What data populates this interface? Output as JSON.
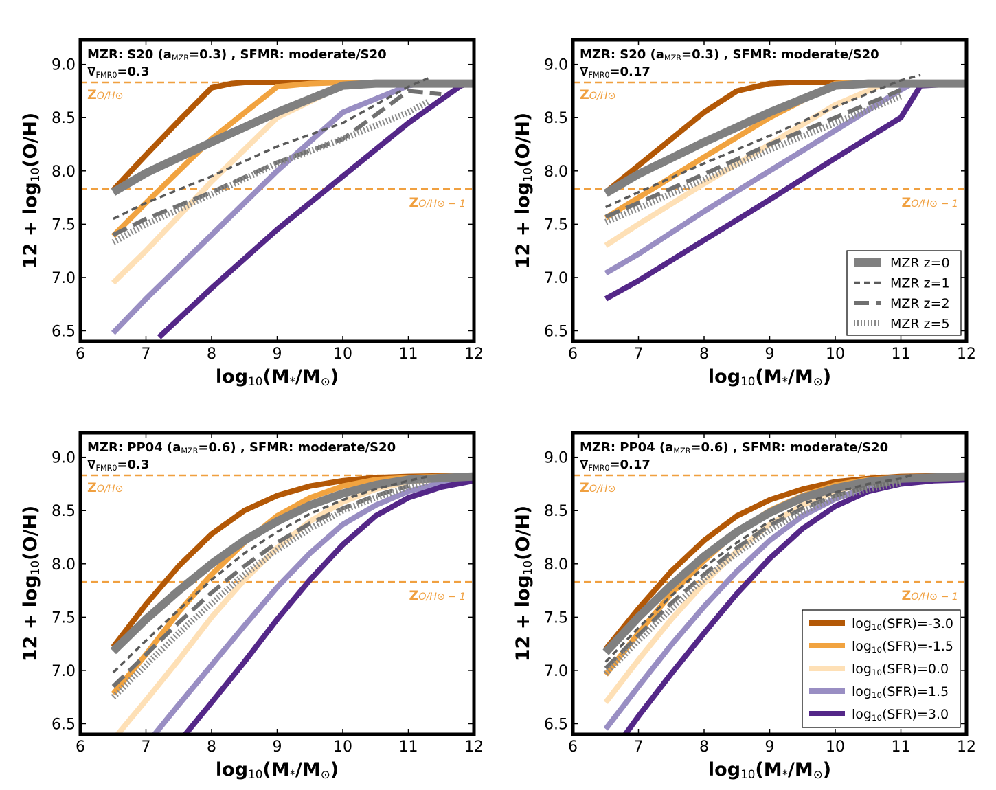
{
  "figure": {
    "x_axis_label": "log10(M*/M⊙)",
    "y_axis_label": "12 + log10(O/H)",
    "ref_line_label_top": "ZO/H⊙",
    "ref_line_label_bottom": "ZO/H⊙ −1",
    "ref_values": [
      8.83,
      7.83
    ],
    "ref_color": "#f0a040"
  },
  "legend_mzr": {
    "entries": [
      "MZR z=0",
      "MZR z=1",
      "MZR z=2",
      "MZR z=5"
    ]
  },
  "legend_sfr": {
    "entries": [
      "log10(SFR)=-3.0",
      "log10(SFR)=-1.5",
      "log10(SFR)=0.0",
      "log10(SFR)=1.5",
      "log10(SFR)=3.0"
    ],
    "colors": [
      "#b35806",
      "#f1a340",
      "#fee0b6",
      "#998ec3",
      "#542788"
    ]
  },
  "chart_data": [
    {
      "type": "line",
      "title_line1": "MZR: S20 (aMZR=0.3) , SFMR: moderate/S20",
      "title_line2": "∇FMR0=0.3",
      "xlabel": "log10(M*/M⊙)",
      "ylabel": "12 + log10(O/H)",
      "xlim": [
        6,
        12
      ],
      "ylim": [
        6.4,
        9.23
      ],
      "xticks": [
        6,
        7,
        8,
        9,
        10,
        11,
        12
      ],
      "yticks": [
        6.5,
        7.0,
        7.5,
        8.0,
        8.5,
        9.0
      ],
      "series": [
        {
          "name": "log10(SFR)=-3.0",
          "x": [
            6.5,
            7,
            7.5,
            8,
            8.3,
            8.5,
            8.7,
            12
          ],
          "y": [
            7.82,
            8.15,
            8.47,
            8.78,
            8.82,
            8.83,
            8.83,
            8.83
          ]
        },
        {
          "name": "log10(SFR)=-1.5",
          "x": [
            6.5,
            7,
            8,
            9,
            9.5,
            10,
            12
          ],
          "y": [
            7.39,
            7.7,
            8.3,
            8.79,
            8.82,
            8.83,
            8.83
          ]
        },
        {
          "name": "log10(SFR)=0.0",
          "x": [
            6.5,
            7,
            8,
            9,
            10,
            10.5,
            12
          ],
          "y": [
            6.95,
            7.25,
            7.9,
            8.5,
            8.8,
            8.83,
            8.83
          ]
        },
        {
          "name": "log10(SFR)=1.5",
          "x": [
            6.5,
            7,
            8,
            9,
            10,
            11,
            11.3,
            12
          ],
          "y": [
            6.48,
            6.8,
            7.4,
            8.0,
            8.55,
            8.8,
            8.83,
            8.83
          ]
        },
        {
          "name": "log10(SFR)=3.0",
          "x": [
            7.2,
            8,
            9,
            10,
            11,
            11.8,
            12
          ],
          "y": [
            6.44,
            6.9,
            7.45,
            7.95,
            8.45,
            8.8,
            8.83
          ]
        },
        {
          "name": "MZR z=0",
          "x": [
            6.5,
            7,
            8,
            9,
            10,
            10.5,
            12
          ],
          "y": [
            7.8,
            7.98,
            8.27,
            8.55,
            8.8,
            8.82,
            8.82
          ]
        },
        {
          "name": "MZR z=1",
          "x": [
            6.5,
            7,
            8,
            9,
            10,
            11,
            11.3
          ],
          "y": [
            7.55,
            7.7,
            7.95,
            8.23,
            8.45,
            8.79,
            8.87
          ]
        },
        {
          "name": "MZR z=2",
          "x": [
            6.5,
            7,
            8,
            9,
            10,
            11,
            11.5
          ],
          "y": [
            7.4,
            7.55,
            7.8,
            8.08,
            8.3,
            8.75,
            8.72
          ]
        },
        {
          "name": "MZR z=5",
          "x": [
            6.5,
            7,
            8,
            9,
            10,
            11,
            11.3
          ],
          "y": [
            7.33,
            7.5,
            7.78,
            8.07,
            8.3,
            8.55,
            8.65
          ]
        }
      ]
    },
    {
      "type": "line",
      "title_line1": "MZR: S20 (aMZR=0.3) , SFMR: moderate/S20",
      "title_line2": "∇FMR0=0.17",
      "xlabel": "log10(M*/M⊙)",
      "ylabel": "12 + log10(O/H)",
      "xlim": [
        6,
        12
      ],
      "ylim": [
        6.4,
        9.23
      ],
      "xticks": [
        6,
        7,
        8,
        9,
        10,
        11,
        12
      ],
      "yticks": [
        6.5,
        7.0,
        7.5,
        8.0,
        8.5,
        9.0
      ],
      "series": [
        {
          "name": "log10(SFR)=-3.0",
          "x": [
            6.5,
            7,
            8,
            8.5,
            9,
            9.3,
            12
          ],
          "y": [
            7.8,
            8.05,
            8.55,
            8.75,
            8.82,
            8.83,
            8.83
          ]
        },
        {
          "name": "log10(SFR)=-1.5",
          "x": [
            6.5,
            7,
            8,
            9,
            10,
            10.3,
            12
          ],
          "y": [
            7.56,
            7.75,
            8.13,
            8.5,
            8.82,
            8.83,
            8.83
          ]
        },
        {
          "name": "log10(SFR)=0.0",
          "x": [
            6.5,
            7,
            8,
            9,
            10,
            10.8,
            12
          ],
          "y": [
            7.3,
            7.5,
            7.88,
            8.25,
            8.62,
            8.83,
            8.83
          ]
        },
        {
          "name": "log10(SFR)=1.5",
          "x": [
            6.5,
            7,
            8,
            9,
            10,
            11,
            11.2,
            12
          ],
          "y": [
            7.04,
            7.22,
            7.62,
            8.0,
            8.38,
            8.76,
            8.83,
            8.83
          ]
        },
        {
          "name": "log10(SFR)=3.0",
          "x": [
            6.5,
            7,
            8,
            9,
            10,
            11,
            11.3,
            12
          ],
          "y": [
            6.8,
            6.97,
            7.35,
            7.73,
            8.12,
            8.5,
            8.8,
            8.82
          ]
        },
        {
          "name": "MZR z=0",
          "x": [
            6.5,
            7,
            8,
            9,
            10,
            10.5,
            12
          ],
          "y": [
            7.79,
            7.97,
            8.27,
            8.55,
            8.8,
            8.82,
            8.82
          ]
        },
        {
          "name": "MZR z=1",
          "x": [
            6.5,
            7,
            8,
            9,
            10,
            11,
            11.3
          ],
          "y": [
            7.66,
            7.8,
            8.07,
            8.33,
            8.6,
            8.85,
            8.9
          ]
        },
        {
          "name": "MZR z=2",
          "x": [
            6.5,
            7,
            8,
            9,
            10,
            11
          ],
          "y": [
            7.57,
            7.7,
            7.97,
            8.25,
            8.5,
            8.76
          ]
        },
        {
          "name": "MZR z=5",
          "x": [
            6.5,
            7,
            8,
            9,
            10,
            11
          ],
          "y": [
            7.52,
            7.65,
            7.92,
            8.2,
            8.45,
            8.7
          ]
        }
      ]
    },
    {
      "type": "line",
      "title_line1": "MZR: PP04 (aMZR=0.6) , SFMR: moderate/S20",
      "title_line2": "∇FMR0=0.3",
      "xlabel": "log10(M*/M⊙)",
      "ylabel": "12 + log10(O/H)",
      "xlim": [
        6,
        12
      ],
      "ylim": [
        6.4,
        9.23
      ],
      "xticks": [
        6,
        7,
        8,
        9,
        10,
        11,
        12
      ],
      "yticks": [
        6.5,
        7.0,
        7.5,
        8.0,
        8.5,
        9.0
      ],
      "series": [
        {
          "name": "log10(SFR)=-3.0",
          "x": [
            6.5,
            7,
            7.5,
            8,
            8.5,
            9,
            9.5,
            10,
            10.5,
            11,
            12
          ],
          "y": [
            7.22,
            7.62,
            7.98,
            8.28,
            8.5,
            8.64,
            8.73,
            8.78,
            8.81,
            8.82,
            8.83
          ]
        },
        {
          "name": "log10(SFR)=-1.5",
          "x": [
            6.5,
            7,
            7.5,
            8,
            8.5,
            9,
            9.5,
            10,
            10.5,
            11,
            12
          ],
          "y": [
            6.78,
            7.15,
            7.55,
            7.9,
            8.2,
            8.45,
            8.62,
            8.73,
            8.79,
            8.81,
            8.83
          ]
        },
        {
          "name": "log10(SFR)=0.0",
          "x": [
            6.5,
            7,
            7.5,
            8,
            8.5,
            9,
            9.5,
            10,
            10.5,
            11,
            12
          ],
          "y": [
            6.35,
            6.72,
            7.1,
            7.5,
            7.85,
            8.15,
            8.4,
            8.58,
            8.7,
            8.77,
            8.82
          ]
        },
        {
          "name": "log10(SFR)=1.5",
          "x": [
            7,
            7.5,
            8,
            8.5,
            9,
            9.5,
            10,
            10.5,
            11,
            11.5,
            12
          ],
          "y": [
            6.3,
            6.68,
            7.05,
            7.42,
            7.78,
            8.1,
            8.37,
            8.55,
            8.68,
            8.76,
            8.8
          ]
        },
        {
          "name": "log10(SFR)=3.0",
          "x": [
            7.6,
            8,
            8.5,
            9,
            9.5,
            10,
            10.5,
            11,
            11.5,
            12
          ],
          "y": [
            6.4,
            6.7,
            7.08,
            7.48,
            7.85,
            8.18,
            8.45,
            8.62,
            8.72,
            8.78
          ]
        },
        {
          "name": "MZR z=0",
          "x": [
            6.5,
            7,
            7.5,
            8,
            8.5,
            9,
            9.5,
            10,
            10.5,
            11,
            12
          ],
          "y": [
            7.18,
            7.48,
            7.75,
            8.0,
            8.22,
            8.4,
            8.55,
            8.66,
            8.74,
            8.79,
            8.82
          ]
        },
        {
          "name": "MZR z=1",
          "x": [
            6.5,
            7,
            7.5,
            8,
            8.5,
            9,
            9.5,
            10,
            10.5,
            11,
            11.3
          ],
          "y": [
            6.98,
            7.28,
            7.57,
            7.85,
            8.1,
            8.3,
            8.47,
            8.6,
            8.7,
            8.78,
            8.82
          ]
        },
        {
          "name": "MZR z=2",
          "x": [
            6.5,
            7,
            7.5,
            8,
            8.5,
            9,
            9.5,
            10,
            10.5,
            11
          ],
          "y": [
            6.85,
            7.15,
            7.45,
            7.73,
            7.98,
            8.2,
            8.38,
            8.52,
            8.64,
            8.73
          ]
        },
        {
          "name": "MZR z=5",
          "x": [
            6.5,
            7,
            7.5,
            8,
            8.5,
            9,
            9.5,
            10,
            10.5,
            11,
            11.3
          ],
          "y": [
            6.75,
            7.05,
            7.35,
            7.63,
            7.9,
            8.13,
            8.33,
            8.5,
            8.62,
            8.72,
            8.77
          ]
        }
      ]
    },
    {
      "type": "line",
      "title_line1": "MZR: PP04 (aMZR=0.6) , SFMR: moderate/S20",
      "title_line2": "∇FMR0=0.17",
      "xlabel": "log10(M*/M⊙)",
      "ylabel": "12 + log10(O/H)",
      "xlim": [
        6,
        12
      ],
      "ylim": [
        6.4,
        9.23
      ],
      "xticks": [
        6,
        7,
        8,
        9,
        10,
        11,
        12
      ],
      "yticks": [
        6.5,
        7.0,
        7.5,
        8.0,
        8.5,
        9.0
      ],
      "series": [
        {
          "name": "log10(SFR)=-3.0",
          "x": [
            6.5,
            7,
            7.5,
            8,
            8.5,
            9,
            9.5,
            10,
            10.5,
            11,
            12
          ],
          "y": [
            7.2,
            7.58,
            7.93,
            8.22,
            8.45,
            8.6,
            8.7,
            8.77,
            8.8,
            8.82,
            8.83
          ]
        },
        {
          "name": "log10(SFR)=-1.5",
          "x": [
            6.5,
            7,
            7.5,
            8,
            8.5,
            9,
            9.5,
            10,
            10.5,
            11,
            12
          ],
          "y": [
            6.96,
            7.35,
            7.72,
            8.03,
            8.3,
            8.5,
            8.64,
            8.74,
            8.79,
            8.81,
            8.83
          ]
        },
        {
          "name": "log10(SFR)=0.0",
          "x": [
            6.5,
            7,
            7.5,
            8,
            8.5,
            9,
            9.5,
            10,
            10.5,
            11,
            12
          ],
          "y": [
            6.7,
            7.1,
            7.48,
            7.82,
            8.12,
            8.37,
            8.55,
            8.68,
            8.76,
            8.8,
            8.83
          ]
        },
        {
          "name": "log10(SFR)=1.5",
          "x": [
            6.5,
            7,
            7.5,
            8,
            8.5,
            9,
            9.5,
            10,
            10.5,
            11,
            12
          ],
          "y": [
            6.45,
            6.85,
            7.24,
            7.6,
            7.93,
            8.22,
            8.45,
            8.61,
            8.72,
            8.78,
            8.82
          ]
        },
        {
          "name": "log10(SFR)=3.0",
          "x": [
            6.8,
            7,
            7.5,
            8,
            8.5,
            9,
            9.5,
            10,
            10.5,
            11,
            11.5,
            12
          ],
          "y": [
            6.4,
            6.57,
            6.97,
            7.35,
            7.72,
            8.05,
            8.33,
            8.54,
            8.68,
            8.75,
            8.78,
            8.79
          ]
        },
        {
          "name": "MZR z=0",
          "x": [
            6.5,
            7,
            7.5,
            8,
            8.5,
            9,
            9.5,
            10,
            10.5,
            11,
            12
          ],
          "y": [
            7.17,
            7.5,
            7.8,
            8.07,
            8.3,
            8.48,
            8.62,
            8.71,
            8.77,
            8.8,
            8.82
          ]
        },
        {
          "name": "MZR z=1",
          "x": [
            6.5,
            7,
            7.5,
            8,
            8.5,
            9,
            9.5,
            10,
            10.5,
            11,
            11.2
          ],
          "y": [
            7.08,
            7.4,
            7.7,
            7.97,
            8.2,
            8.4,
            8.56,
            8.67,
            8.75,
            8.8,
            8.84
          ]
        },
        {
          "name": "MZR z=2",
          "x": [
            6.5,
            7,
            7.5,
            8,
            8.5,
            9,
            9.5,
            10,
            10.5,
            11
          ],
          "y": [
            7.02,
            7.33,
            7.63,
            7.9,
            8.15,
            8.36,
            8.52,
            8.64,
            8.72,
            8.77
          ]
        },
        {
          "name": "MZR z=5",
          "x": [
            6.5,
            7,
            7.5,
            8,
            8.5,
            9,
            9.5,
            10,
            10.5,
            11
          ],
          "y": [
            6.97,
            7.28,
            7.58,
            7.86,
            8.1,
            8.32,
            8.49,
            8.62,
            8.7,
            8.76
          ]
        }
      ]
    }
  ]
}
